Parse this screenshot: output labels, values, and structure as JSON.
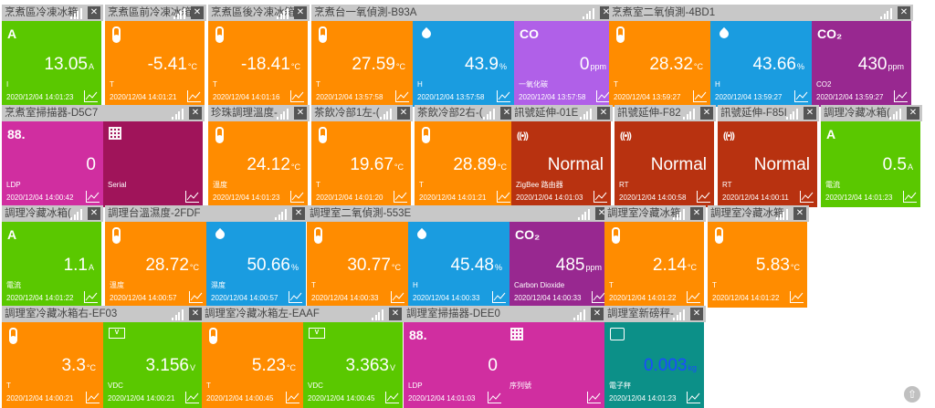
{
  "colors": {
    "orange": "#ff8c00",
    "green": "#5ac800",
    "blue": "#1a9ce0",
    "purple": "#b060e8",
    "magenta": "#d02ea0",
    "maroon": "#a0145a",
    "rust": "#b83210",
    "violet": "#982890",
    "teal": "#0c9088",
    "header": "#c8c8c8"
  },
  "cards": [
    {
      "title": "烹煮區冷凍冰箱",
      "tiles": [
        {
          "icon": "letter",
          "glyph": "A",
          "value": "13.05",
          "unit": "A",
          "label": "I",
          "time": "2020/12/04 14:01:23",
          "color": "green"
        }
      ]
    },
    {
      "title": "烹煮區前冷凍冰箱",
      "tiles": [
        {
          "icon": "thermometer",
          "value": "-5.41",
          "unit": "°C",
          "label": "T",
          "time": "2020/12/04 14:01:21",
          "color": "orange"
        }
      ]
    },
    {
      "title": "烹煮區後冷凍冰箱",
      "tiles": [
        {
          "icon": "thermometer",
          "value": "-18.41",
          "unit": "°C",
          "label": "T",
          "time": "2020/12/04 14:01:16",
          "color": "orange"
        }
      ]
    },
    {
      "title": "烹煮台一氧偵測-B93A",
      "tiles": [
        {
          "icon": "thermometer",
          "value": "27.59",
          "unit": "°C",
          "label": "T",
          "time": "2020/12/04 13:57:58",
          "color": "orange"
        },
        {
          "icon": "drop",
          "value": "43.9",
          "unit": "%",
          "label": "H",
          "time": "2020/12/04 13:57:58",
          "color": "blue"
        },
        {
          "icon": "letter",
          "glyph": "CO",
          "value": "0",
          "unit": "ppm",
          "label": "一氧化碳",
          "time": "2020/12/04 13:57:58",
          "color": "purple"
        }
      ]
    },
    {
      "title": "烹煮室二氧偵測-4BD1",
      "tiles": [
        {
          "icon": "thermometer",
          "value": "28.32",
          "unit": "°C",
          "label": "T",
          "time": "2020/12/04 13:59:27",
          "color": "orange"
        },
        {
          "icon": "drop",
          "value": "43.66",
          "unit": "%",
          "label": "H",
          "time": "2020/12/04 13:59:27",
          "color": "blue"
        },
        {
          "icon": "letter",
          "glyph": "CO₂",
          "value": "430",
          "unit": "ppm",
          "label": "CO2",
          "time": "2020/12/04 13:59:27",
          "color": "violet"
        }
      ]
    },
    {
      "title": "烹煮室掃描器-D5C7",
      "tiles": [
        {
          "icon": "letter",
          "glyph": "88.",
          "value": "0",
          "unit": "",
          "label": "LDP",
          "time": "2020/12/04 14:00:42",
          "color": "magenta"
        },
        {
          "icon": "qr",
          "value": "",
          "unit": "",
          "label": "Serial",
          "time": "",
          "color": "maroon"
        }
      ]
    },
    {
      "title": "珍珠調理溫度-",
      "tiles": [
        {
          "icon": "thermometer",
          "value": "24.12",
          "unit": "°C",
          "label": "溫度",
          "time": "2020/12/04 14:01:23",
          "color": "orange"
        }
      ]
    },
    {
      "title": "茶飲冷部1左-(",
      "tiles": [
        {
          "icon": "thermometer",
          "value": "19.67",
          "unit": "°C",
          "label": "T",
          "time": "2020/12/04 14:01:20",
          "color": "orange"
        }
      ]
    },
    {
      "title": "茶飲冷部2右-(",
      "tiles": [
        {
          "icon": "thermometer",
          "value": "28.89",
          "unit": "°C",
          "label": "T",
          "time": "2020/12/04 14:01:21",
          "color": "orange"
        }
      ]
    },
    {
      "title": "訊號延伸-01E",
      "tiles": [
        {
          "icon": "wifi",
          "value": "Normal",
          "unit": "",
          "label": "ZigBee 路由器",
          "time": "2020/12/04 14:01:03",
          "color": "rust"
        }
      ]
    },
    {
      "title": "訊號延伸-F82",
      "tiles": [
        {
          "icon": "wifi",
          "value": "Normal",
          "unit": "",
          "label": "RT",
          "time": "2020/12/04 14:00:58",
          "color": "rust"
        }
      ]
    },
    {
      "title": "訊號延伸-F85I",
      "tiles": [
        {
          "icon": "wifi",
          "value": "Normal",
          "unit": "",
          "label": "RT",
          "time": "2020/12/04 14:00:11",
          "color": "rust"
        }
      ]
    },
    {
      "title": "調理冷藏冰箱(",
      "tiles": [
        {
          "icon": "letter",
          "glyph": "A",
          "value": "0.5",
          "unit": "A",
          "label": "電流",
          "time": "2020/12/04 14:01:23",
          "color": "green"
        }
      ]
    },
    {
      "title": "調理冷藏冰箱(",
      "tiles": [
        {
          "icon": "letter",
          "glyph": "A",
          "value": "1.1",
          "unit": "A",
          "label": "電流",
          "time": "2020/12/04 14:01:22",
          "color": "green"
        }
      ]
    },
    {
      "title": "調理台溫濕度-2FDF",
      "tiles": [
        {
          "icon": "thermometer",
          "value": "28.72",
          "unit": "°C",
          "label": "溫度",
          "time": "2020/12/04 14:00:57",
          "color": "orange"
        },
        {
          "icon": "drop",
          "value": "50.66",
          "unit": "%",
          "label": "濕度",
          "time": "2020/12/04 14:00:57",
          "color": "blue"
        }
      ]
    },
    {
      "title": "調理室二氧偵測-553E",
      "tiles": [
        {
          "icon": "thermometer",
          "value": "30.77",
          "unit": "°C",
          "label": "T",
          "time": "2020/12/04 14:00:33",
          "color": "orange"
        },
        {
          "icon": "drop",
          "value": "45.48",
          "unit": "%",
          "label": "H",
          "time": "2020/12/04 14:00:33",
          "color": "blue"
        },
        {
          "icon": "letter",
          "glyph": "CO₂",
          "value": "485",
          "unit": "ppm",
          "label": "Carbon Dioxide",
          "time": "2020/12/04 14:00:33",
          "color": "violet"
        }
      ]
    },
    {
      "title": "調理室冷藏冰箱",
      "tiles": [
        {
          "icon": "thermometer",
          "value": "2.14",
          "unit": "°C",
          "label": "T",
          "time": "2020/12/04 14:01:22",
          "color": "orange"
        }
      ]
    },
    {
      "title": "調理室冷藏冰箱",
      "tiles": [
        {
          "icon": "thermometer",
          "value": "5.83",
          "unit": "°C",
          "label": "T",
          "time": "2020/12/04 14:01:22",
          "color": "orange"
        }
      ]
    },
    {
      "title": "調理室冷藏冰箱右-EF03",
      "tiles": [
        {
          "icon": "thermometer",
          "value": "3.3",
          "unit": "°C",
          "label": "T",
          "time": "2020/12/04 14:00:21",
          "color": "orange"
        },
        {
          "icon": "battery",
          "value": "3.156",
          "unit": "V",
          "label": "VDC",
          "time": "2020/12/04 14:00:21",
          "color": "green"
        }
      ]
    },
    {
      "title": "調理室冷藏冰箱左-EAAF",
      "tiles": [
        {
          "icon": "thermometer",
          "value": "5.23",
          "unit": "°C",
          "label": "T",
          "time": "2020/12/04 14:00:45",
          "color": "orange"
        },
        {
          "icon": "battery",
          "value": "3.363",
          "unit": "V",
          "label": "VDC",
          "time": "2020/12/04 14:00:45",
          "color": "green"
        }
      ]
    },
    {
      "title": "調理室掃描器-DEE0",
      "tiles": [
        {
          "icon": "letter",
          "glyph": "88.",
          "value": "0",
          "unit": "",
          "label": "LDP",
          "time": "2020/12/04 14:01:03",
          "color": "magenta"
        },
        {
          "icon": "qr",
          "value": "",
          "unit": "",
          "label": "序列號",
          "time": "",
          "color": "magenta"
        }
      ]
    },
    {
      "title": "調理室新磅秤-",
      "tiles": [
        {
          "icon": "scale",
          "value": "0.003",
          "unit": "kg",
          "label": "電子秤",
          "time": "2020/12/04 14:01:23",
          "color": "teal"
        }
      ]
    }
  ],
  "scroll_top_icon": "⇧"
}
